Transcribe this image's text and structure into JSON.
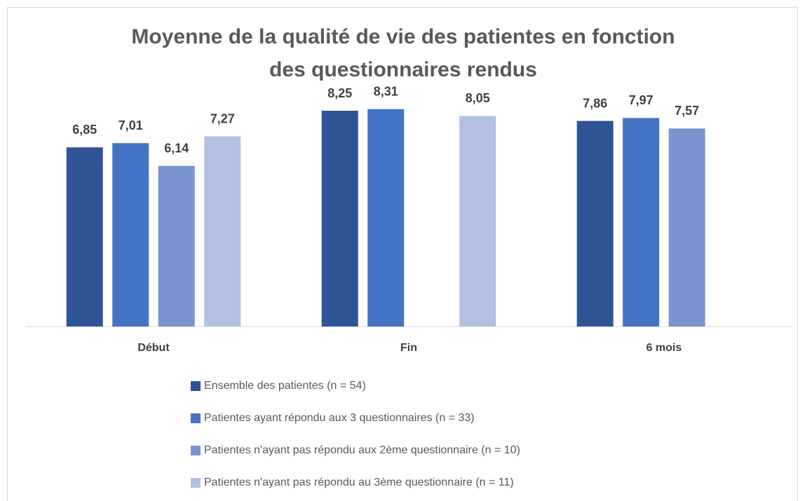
{
  "chart_data": {
    "type": "bar",
    "title": [
      "Moyenne de la qualité de vie des patientes en fonction",
      "des questionnaires rendus"
    ],
    "categories": [
      "Début",
      "Fin",
      "6 mois"
    ],
    "ylim": [
      0,
      9
    ],
    "series": [
      {
        "name": "Ensemble des patientes (n = 54)",
        "color": "#2f5597",
        "values": [
          6.85,
          8.25,
          7.86
        ],
        "value_labels": [
          "6,85",
          "8,25",
          "7,86"
        ]
      },
      {
        "name": "Patientes ayant répondu aux 3 questionnaires (n = 33)",
        "color": "#4472c4",
        "values": [
          7.01,
          8.31,
          7.97
        ],
        "value_labels": [
          "7,01",
          "8,31",
          "7,97"
        ]
      },
      {
        "name": "Patientes n'ayant pas répondu aux 2ème questionnaire (n = 10)",
        "color": "#7b93d0",
        "values": [
          6.14,
          null,
          7.57
        ],
        "value_labels": [
          "6,14",
          null,
          "7,57"
        ]
      },
      {
        "name": "Patientes n'ayant pas répondu au 3ème questionnaire (n = 11)",
        "color": "#b4c0e2",
        "values": [
          7.27,
          8.05,
          null
        ],
        "value_labels": [
          "7,27",
          "8,05",
          null
        ]
      }
    ],
    "legend": "bottom"
  }
}
